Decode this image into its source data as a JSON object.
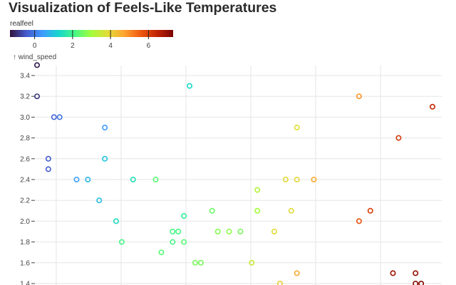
{
  "chart_data": {
    "type": "scatter",
    "title": "Visualization of Feels-Like Temperatures",
    "ylabel": "↑ wind_speed",
    "xlabel": "",
    "ylim": [
      1.4,
      3.5
    ],
    "yticks": [
      "1.4",
      "1.6",
      "1.8",
      "2.0",
      "2.2",
      "2.4",
      "2.6",
      "2.8",
      "3.0",
      "3.2",
      "3.4"
    ],
    "grid": true,
    "color_legend": {
      "label": "realfeel",
      "domain": [
        -1.3,
        7.3
      ],
      "ticks": [
        "0",
        "2",
        "4",
        "6"
      ],
      "colormap": "turbo"
    },
    "points": [
      {
        "x": 0.0,
        "y": 3.5,
        "c": -1.2
      },
      {
        "x": 0.0,
        "y": 3.2,
        "c": -0.9
      },
      {
        "x": 1.5,
        "y": 3.0,
        "c": -0.3
      },
      {
        "x": 2.0,
        "y": 3.0,
        "c": -0.1
      },
      {
        "x": 6.0,
        "y": 2.9,
        "c": 0.4
      },
      {
        "x": 1.0,
        "y": 2.6,
        "c": -0.4
      },
      {
        "x": 6.0,
        "y": 2.6,
        "c": 1.0
      },
      {
        "x": 1.0,
        "y": 2.5,
        "c": -0.4
      },
      {
        "x": 3.5,
        "y": 2.4,
        "c": 0.5
      },
      {
        "x": 4.5,
        "y": 2.4,
        "c": 0.8
      },
      {
        "x": 8.5,
        "y": 2.4,
        "c": 1.5
      },
      {
        "x": 10.5,
        "y": 2.4,
        "c": 2.3
      },
      {
        "x": 5.5,
        "y": 2.2,
        "c": 0.9
      },
      {
        "x": 7.0,
        "y": 2.0,
        "c": 1.4
      },
      {
        "x": 13.0,
        "y": 2.05,
        "c": 1.8
      },
      {
        "x": 12.0,
        "y": 1.9,
        "c": 2.1
      },
      {
        "x": 12.5,
        "y": 1.9,
        "c": 2.1
      },
      {
        "x": 7.5,
        "y": 1.8,
        "c": 2.1
      },
      {
        "x": 12.0,
        "y": 1.8,
        "c": 2.1
      },
      {
        "x": 13.0,
        "y": 1.8,
        "c": 2.3
      },
      {
        "x": 11.0,
        "y": 1.7,
        "c": 2.3
      },
      {
        "x": 14.0,
        "y": 1.6,
        "c": 2.6
      },
      {
        "x": 14.5,
        "y": 1.6,
        "c": 2.6
      },
      {
        "x": 13.5,
        "y": 3.3,
        "c": 1.3
      },
      {
        "x": 15.5,
        "y": 2.1,
        "c": 2.5
      },
      {
        "x": 16.0,
        "y": 1.9,
        "c": 2.7
      },
      {
        "x": 17.0,
        "y": 1.9,
        "c": 2.8
      },
      {
        "x": 18.0,
        "y": 1.9,
        "c": 2.6
      },
      {
        "x": 19.5,
        "y": 2.3,
        "c": 3.2
      },
      {
        "x": 19.5,
        "y": 2.1,
        "c": 3.0
      },
      {
        "x": 19.0,
        "y": 1.6,
        "c": 3.5
      },
      {
        "x": 21.0,
        "y": 1.9,
        "c": 3.9
      },
      {
        "x": 21.5,
        "y": 1.4,
        "c": 4.1
      },
      {
        "x": 22.0,
        "y": 2.4,
        "c": 3.9
      },
      {
        "x": 23.0,
        "y": 2.4,
        "c": 3.9
      },
      {
        "x": 22.5,
        "y": 2.1,
        "c": 3.9
      },
      {
        "x": 23.0,
        "y": 2.9,
        "c": 3.8
      },
      {
        "x": 24.5,
        "y": 2.4,
        "c": 4.6
      },
      {
        "x": 23.0,
        "y": 1.5,
        "c": 4.6
      },
      {
        "x": 28.5,
        "y": 3.2,
        "c": 4.9
      },
      {
        "x": 28.5,
        "y": 2.0,
        "c": 5.7
      },
      {
        "x": 29.5,
        "y": 2.1,
        "c": 6.0
      },
      {
        "x": 32.0,
        "y": 2.8,
        "c": 6.1
      },
      {
        "x": 35.0,
        "y": 3.1,
        "c": 6.4
      },
      {
        "x": 31.5,
        "y": 1.5,
        "c": 6.9
      },
      {
        "x": 33.5,
        "y": 1.5,
        "c": 7.0
      },
      {
        "x": 33.5,
        "y": 1.4,
        "c": 7.1
      },
      {
        "x": 34.0,
        "y": 1.4,
        "c": 7.2
      }
    ]
  }
}
